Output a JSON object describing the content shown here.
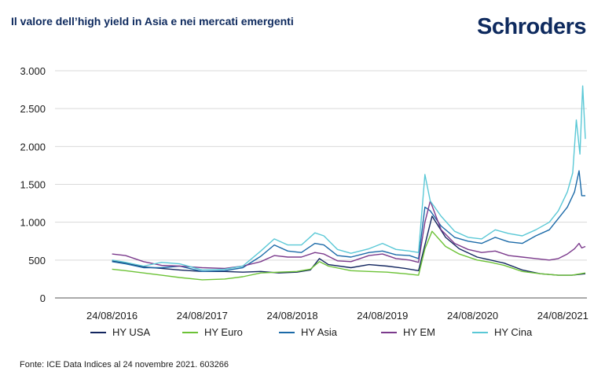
{
  "header": {
    "title": "Il valore dell’high yield in Asia e nei mercati emergenti",
    "brand": "Schroders"
  },
  "footer": {
    "source": "Fonte: ICE Data Indices al 24 novembre 2021. 603266"
  },
  "colors": {
    "hy_usa": "#13265f",
    "hy_euro": "#6cc236",
    "hy_asia": "#1b6aa8",
    "hy_em": "#7b3a8c",
    "hy_cina": "#5ac8d6",
    "grid": "#d9d9d9"
  },
  "chart_data": {
    "type": "line",
    "title": "Il valore dell’high yield in Asia e nei mercati emergenti",
    "xlabel": "",
    "ylabel": "",
    "x_range": [
      2016.0,
      2021.9
    ],
    "ylim": [
      0,
      3000
    ],
    "y_ticks": [
      0,
      500,
      1000,
      1500,
      2000,
      2500,
      3000
    ],
    "y_tick_labels": [
      "0",
      "500",
      "1.000",
      "1.500",
      "2.000",
      "2.500",
      "3.000"
    ],
    "x_ticks": [
      2016.65,
      2017.65,
      2018.65,
      2019.65,
      2020.65,
      2021.65
    ],
    "x_tick_labels": [
      "24/08/2016",
      "24/08/2017",
      "24/08/2018",
      "24/08/2019",
      "24/08/2020",
      "24/08/2021"
    ],
    "grid": true,
    "legend_position": "bottom",
    "series": [
      {
        "name": "HY USA",
        "color_key": "hy_usa",
        "x": [
          2016.65,
          2016.8,
          2017.0,
          2017.2,
          2017.4,
          2017.65,
          2017.9,
          2018.1,
          2018.3,
          2018.5,
          2018.7,
          2018.85,
          2018.95,
          2019.05,
          2019.3,
          2019.5,
          2019.7,
          2019.9,
          2020.05,
          2020.12,
          2020.2,
          2020.35,
          2020.5,
          2020.7,
          2020.85,
          2021.0,
          2021.2,
          2021.4,
          2021.6,
          2021.75,
          2021.9
        ],
        "values": [
          490,
          460,
          410,
          390,
          370,
          350,
          350,
          340,
          350,
          330,
          340,
          370,
          520,
          440,
          400,
          440,
          420,
          390,
          360,
          700,
          1080,
          800,
          650,
          540,
          500,
          460,
          370,
          320,
          300,
          300,
          320
        ]
      },
      {
        "name": "HY Euro",
        "color_key": "hy_euro",
        "x": [
          2016.65,
          2016.8,
          2017.0,
          2017.2,
          2017.4,
          2017.65,
          2017.9,
          2018.1,
          2018.3,
          2018.5,
          2018.7,
          2018.85,
          2018.95,
          2019.05,
          2019.3,
          2019.5,
          2019.7,
          2019.9,
          2020.05,
          2020.12,
          2020.2,
          2020.35,
          2020.5,
          2020.7,
          2020.85,
          2021.0,
          2021.2,
          2021.4,
          2021.6,
          2021.75,
          2021.9
        ],
        "values": [
          380,
          360,
          330,
          300,
          270,
          240,
          250,
          280,
          330,
          340,
          350,
          380,
          480,
          420,
          360,
          350,
          340,
          320,
          300,
          650,
          880,
          680,
          580,
          500,
          470,
          430,
          350,
          320,
          300,
          300,
          330
        ]
      },
      {
        "name": "HY Asia",
        "color_key": "hy_asia",
        "x": [
          2016.65,
          2016.8,
          2017.0,
          2017.2,
          2017.4,
          2017.65,
          2017.9,
          2018.1,
          2018.3,
          2018.45,
          2018.6,
          2018.75,
          2018.9,
          2019.0,
          2019.15,
          2019.3,
          2019.5,
          2019.65,
          2019.8,
          2019.95,
          2020.05,
          2020.12,
          2020.18,
          2020.3,
          2020.45,
          2020.6,
          2020.75,
          2020.9,
          2021.05,
          2021.2,
          2021.35,
          2021.5,
          2021.6,
          2021.7,
          2021.78,
          2021.83,
          2021.86,
          2021.9
        ],
        "values": [
          480,
          450,
          400,
          400,
          420,
          350,
          360,
          400,
          550,
          700,
          620,
          600,
          720,
          700,
          560,
          540,
          600,
          620,
          570,
          560,
          520,
          1200,
          1150,
          950,
          800,
          750,
          720,
          800,
          740,
          720,
          820,
          900,
          1050,
          1200,
          1400,
          1680,
          1350,
          1350
        ]
      },
      {
        "name": "HY EM",
        "color_key": "hy_em",
        "x": [
          2016.65,
          2016.8,
          2017.0,
          2017.2,
          2017.4,
          2017.65,
          2017.9,
          2018.1,
          2018.3,
          2018.45,
          2018.6,
          2018.75,
          2018.9,
          2019.0,
          2019.15,
          2019.3,
          2019.5,
          2019.65,
          2019.8,
          2019.95,
          2020.05,
          2020.12,
          2020.18,
          2020.3,
          2020.45,
          2020.6,
          2020.75,
          2020.9,
          2021.05,
          2021.2,
          2021.35,
          2021.5,
          2021.6,
          2021.7,
          2021.78,
          2021.83,
          2021.86,
          2021.9
        ],
        "values": [
          580,
          560,
          480,
          430,
          420,
          400,
          390,
          420,
          480,
          560,
          540,
          540,
          600,
          580,
          490,
          480,
          560,
          580,
          520,
          500,
          470,
          1000,
          1280,
          900,
          720,
          640,
          600,
          620,
          560,
          540,
          520,
          500,
          520,
          580,
          650,
          720,
          660,
          680
        ]
      },
      {
        "name": "HY Cina",
        "color_key": "hy_cina",
        "x": [
          2016.65,
          2016.8,
          2017.0,
          2017.2,
          2017.4,
          2017.65,
          2017.9,
          2018.1,
          2018.3,
          2018.45,
          2018.6,
          2018.75,
          2018.9,
          2019.0,
          2019.15,
          2019.3,
          2019.5,
          2019.65,
          2019.8,
          2019.95,
          2020.05,
          2020.12,
          2020.18,
          2020.3,
          2020.45,
          2020.6,
          2020.75,
          2020.9,
          2021.05,
          2021.2,
          2021.35,
          2021.5,
          2021.6,
          2021.7,
          2021.76,
          2021.8,
          2021.84,
          2021.87,
          2021.9
        ],
        "values": [
          500,
          470,
          420,
          470,
          450,
          370,
          380,
          420,
          620,
          780,
          700,
          700,
          860,
          820,
          640,
          590,
          650,
          720,
          640,
          620,
          600,
          1630,
          1280,
          1080,
          880,
          800,
          780,
          900,
          850,
          820,
          900,
          1000,
          1150,
          1400,
          1650,
          2350,
          1900,
          2800,
          2100
        ]
      }
    ]
  }
}
